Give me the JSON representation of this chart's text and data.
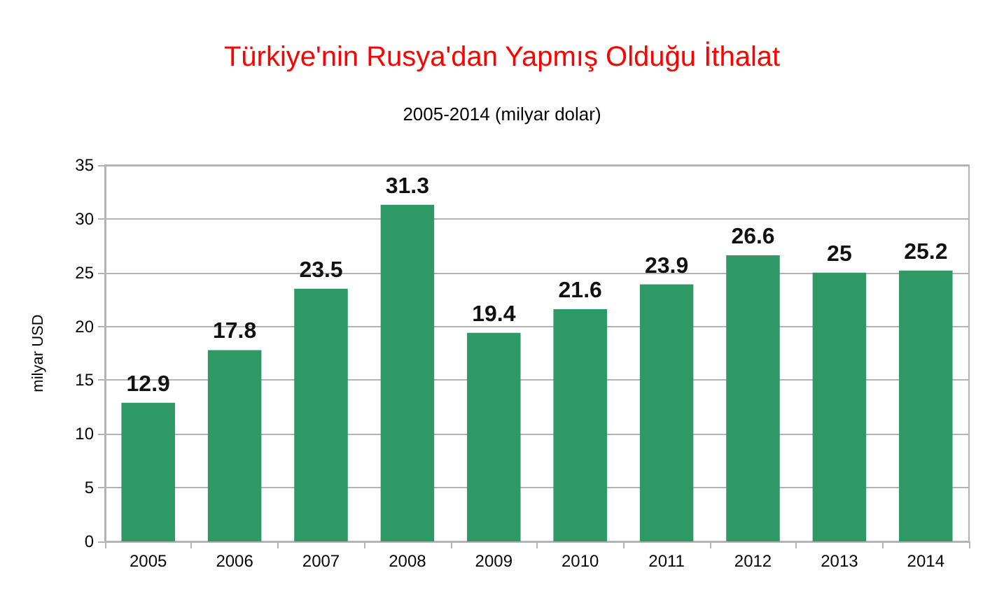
{
  "chart_data": {
    "type": "bar",
    "title": "Türkiye'nin Rusya'dan Yapmış Olduğu İthalat",
    "subtitle": "2005-2014 (milyar dolar)",
    "ylabel": "milyar USD",
    "categories": [
      "2005",
      "2006",
      "2007",
      "2008",
      "2009",
      "2010",
      "2011",
      "2012",
      "2013",
      "2014"
    ],
    "values": [
      12.9,
      17.8,
      23.5,
      31.3,
      19.4,
      21.6,
      23.9,
      26.6,
      25,
      25.2
    ],
    "color": "#2e9965",
    "ylim": [
      0,
      35
    ],
    "yticks": [
      0,
      5,
      10,
      15,
      20,
      25,
      30,
      35
    ],
    "grid": "y",
    "data_labels": true
  }
}
